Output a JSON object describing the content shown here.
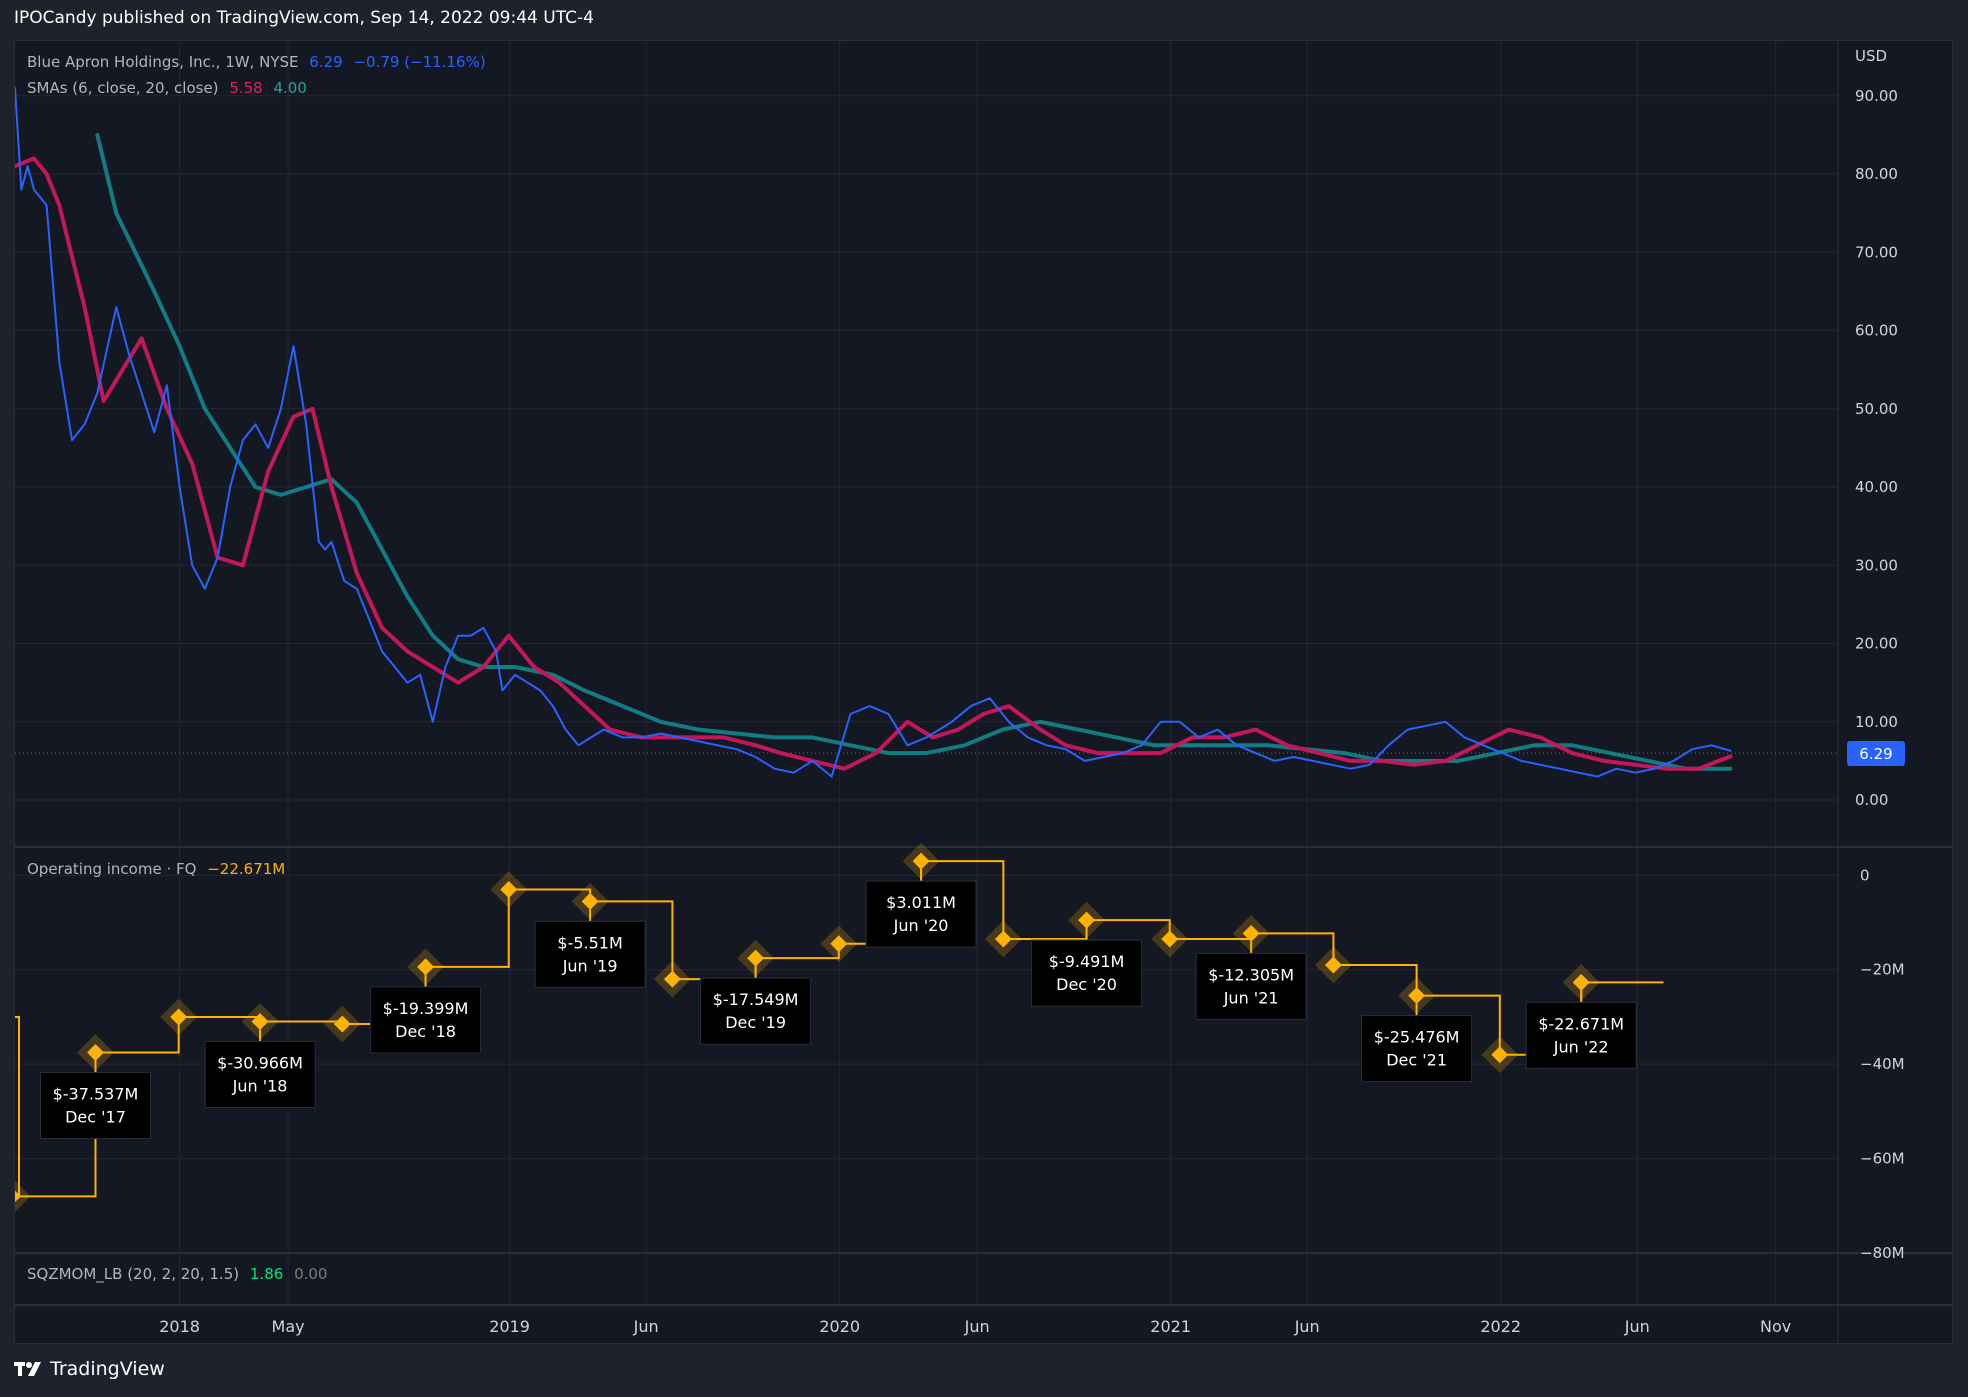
{
  "header": {
    "published": "IPOCandy published on TradingView.com, Sep 14, 2022 09:44 UTC-4"
  },
  "footer": {
    "brand": "TradingView"
  },
  "main_legend": {
    "symbol": "Blue Apron Holdings, Inc., 1W, NYSE",
    "last": "6.29",
    "change": "−0.79 (−11.16%)",
    "sma_label": "SMAs (6, close, 20, close)",
    "sma6": "5.58",
    "sma20": "4.00"
  },
  "oi_legend": {
    "label": "Operating income · FQ",
    "value": "−22.671M"
  },
  "sqz_legend": {
    "label": "SQZMOM_LB (20, 2, 20, 1.5)",
    "v1": "1.86",
    "v2": "0.00"
  },
  "colors": {
    "price": "#2962ff",
    "sma6": "#c2185b",
    "sma20": "#137c82",
    "oi": "#ffb300"
  },
  "chart_data": [
    {
      "type": "line",
      "currency_label": "USD",
      "y_ticks": [
        "90.00",
        "80.00",
        "70.00",
        "60.00",
        "50.00",
        "40.00",
        "30.00",
        "20.00",
        "10.00",
        "0.00"
      ],
      "ylim": [
        -6,
        97
      ],
      "last_price_label": "6.29",
      "x_ticks": [
        "2018",
        "May",
        "2019",
        "Jun",
        "2020",
        "Jun",
        "2021",
        "Jun",
        "2022",
        "Jun",
        "Nov"
      ],
      "x_tick_dates": [
        "2018-01-01",
        "2018-05-01",
        "2019-01-01",
        "2019-06-01",
        "2020-01-01",
        "2020-06-01",
        "2021-01-01",
        "2021-06-01",
        "2022-01-01",
        "2022-06-01",
        "2022-11-01"
      ],
      "xlim": [
        "2017-07-03",
        "2023-01-09"
      ],
      "series": [
        {
          "name": "",
          "x": [
            "2017-07-03",
            "2017-07-10",
            "2017-07-17",
            "2017-07-24",
            "2017-08-07",
            "2017-08-21",
            "2017-09-04",
            "2017-09-18",
            "2017-10-02",
            "2017-10-23",
            "2017-11-06",
            "2017-11-20",
            "2017-12-04",
            "2017-12-18",
            "2018-01-01",
            "2018-01-15",
            "2018-01-29",
            "2018-02-12",
            "2018-02-26",
            "2018-03-12",
            "2018-03-26",
            "2018-04-09",
            "2018-04-23",
            "2018-05-07",
            "2018-05-21",
            "2018-06-04",
            "2018-06-11",
            "2018-06-18",
            "2018-07-02",
            "2018-07-16",
            "2018-07-30",
            "2018-08-13",
            "2018-08-27",
            "2018-09-10",
            "2018-09-24",
            "2018-10-08",
            "2018-10-22",
            "2018-11-05",
            "2018-11-19",
            "2018-12-03",
            "2018-12-17",
            "2018-12-24",
            "2019-01-07",
            "2019-01-21",
            "2019-02-04",
            "2019-02-18",
            "2019-03-04",
            "2019-03-18",
            "2019-04-01",
            "2019-04-15",
            "2019-05-06",
            "2019-05-27",
            "2019-06-17",
            "2019-07-08",
            "2019-07-29",
            "2019-08-19",
            "2019-09-09",
            "2019-09-30",
            "2019-10-21",
            "2019-11-11",
            "2019-12-02",
            "2019-12-23",
            "2020-01-13",
            "2020-02-03",
            "2020-02-24",
            "2020-03-16",
            "2020-04-06",
            "2020-04-20",
            "2020-05-04",
            "2020-05-25",
            "2020-06-15",
            "2020-07-06",
            "2020-07-27",
            "2020-08-17",
            "2020-09-07",
            "2020-09-28",
            "2020-10-19",
            "2020-11-09",
            "2020-11-30",
            "2020-12-21",
            "2021-01-11",
            "2021-02-01",
            "2021-02-22",
            "2021-03-15",
            "2021-04-05",
            "2021-04-26",
            "2021-05-17",
            "2021-06-07",
            "2021-06-28",
            "2021-07-19",
            "2021-08-09",
            "2021-08-30",
            "2021-09-20",
            "2021-10-11",
            "2021-11-01",
            "2021-11-22",
            "2021-12-13",
            "2022-01-03",
            "2022-01-24",
            "2022-02-14",
            "2022-03-07",
            "2022-03-28",
            "2022-04-18",
            "2022-05-09",
            "2022-05-30",
            "2022-06-20",
            "2022-07-11",
            "2022-08-01",
            "2022-08-22",
            "2022-09-12"
          ],
          "values": [
            91,
            78,
            81,
            78,
            76,
            56,
            46,
            48,
            52,
            63,
            57,
            52,
            47,
            53,
            40,
            30,
            27,
            31,
            40,
            46,
            48,
            45,
            50,
            58,
            48,
            33,
            32,
            33,
            28,
            27,
            23,
            19,
            17,
            15,
            16,
            10,
            17,
            21,
            21,
            22,
            19,
            14,
            16,
            15,
            14,
            12,
            9,
            7,
            8,
            9,
            8,
            8,
            8.5,
            8,
            7.5,
            7,
            6.5,
            5.5,
            4,
            3.5,
            5,
            3,
            11,
            12,
            11,
            7,
            8,
            9,
            10,
            12,
            13,
            10,
            8,
            7,
            6.5,
            5,
            5.5,
            6,
            7,
            10,
            10,
            8,
            9,
            7,
            6,
            5,
            5.5,
            5,
            4.5,
            4,
            4.5,
            7,
            9,
            9.5,
            10,
            8,
            7,
            6,
            5,
            4.5,
            4,
            3.5,
            3,
            4,
            3.5,
            4,
            5,
            6.5,
            7,
            6.29
          ]
        },
        {
          "name": "",
          "x": [
            "2017-07-03",
            "2017-07-24",
            "2017-08-07",
            "2017-08-21",
            "2017-09-18",
            "2017-10-09",
            "2017-10-30",
            "2017-11-20",
            "2017-12-18",
            "2018-01-15",
            "2018-02-12",
            "2018-03-12",
            "2018-04-09",
            "2018-05-07",
            "2018-05-28",
            "2018-06-18",
            "2018-07-16",
            "2018-08-13",
            "2018-09-10",
            "2018-10-08",
            "2018-11-05",
            "2018-12-03",
            "2018-12-31",
            "2019-01-28",
            "2019-02-25",
            "2019-03-25",
            "2019-04-22",
            "2019-05-27",
            "2019-06-24",
            "2019-07-29",
            "2019-08-26",
            "2019-09-30",
            "2019-10-28",
            "2019-12-02",
            "2020-01-06",
            "2020-02-10",
            "2020-03-16",
            "2020-04-13",
            "2020-05-11",
            "2020-06-08",
            "2020-07-06",
            "2020-08-10",
            "2020-09-07",
            "2020-10-12",
            "2020-11-16",
            "2020-12-21",
            "2021-01-25",
            "2021-03-01",
            "2021-04-05",
            "2021-05-10",
            "2021-06-14",
            "2021-07-19",
            "2021-08-23",
            "2021-09-27",
            "2021-11-01",
            "2021-12-06",
            "2022-01-10",
            "2022-02-14",
            "2022-03-21",
            "2022-04-25",
            "2022-05-30",
            "2022-07-04",
            "2022-08-08",
            "2022-09-12"
          ],
          "values": [
            81,
            82,
            80,
            76,
            63,
            51,
            55,
            59,
            50,
            43,
            31,
            30,
            42,
            49,
            50,
            40,
            29,
            22,
            19,
            17,
            15,
            17,
            21,
            17,
            15,
            12,
            9,
            8,
            8,
            8,
            8,
            7,
            6,
            5,
            4,
            6,
            10,
            8,
            9,
            11,
            12,
            9,
            7,
            6,
            6,
            6,
            8,
            8,
            9,
            7,
            6,
            5,
            5,
            4.5,
            5,
            7,
            9,
            8,
            6,
            5,
            4.5,
            4,
            4,
            5.58
          ]
        },
        {
          "name": "",
          "x": [
            "2017-10-02",
            "2017-10-23",
            "2017-11-13",
            "2017-12-04",
            "2018-01-01",
            "2018-01-29",
            "2018-02-26",
            "2018-03-26",
            "2018-04-23",
            "2018-05-21",
            "2018-06-18",
            "2018-07-16",
            "2018-08-13",
            "2018-09-10",
            "2018-10-08",
            "2018-11-05",
            "2018-12-03",
            "2019-01-07",
            "2019-02-18",
            "2019-03-25",
            "2019-05-06",
            "2019-06-17",
            "2019-07-29",
            "2019-09-09",
            "2019-10-21",
            "2019-12-02",
            "2020-01-13",
            "2020-02-24",
            "2020-04-06",
            "2020-05-18",
            "2020-06-29",
            "2020-08-10",
            "2020-09-21",
            "2020-11-02",
            "2020-12-14",
            "2021-01-25",
            "2021-03-08",
            "2021-04-19",
            "2021-05-31",
            "2021-07-12",
            "2021-08-23",
            "2021-10-04",
            "2021-11-15",
            "2021-12-27",
            "2022-02-07",
            "2022-03-21",
            "2022-05-02",
            "2022-06-13",
            "2022-07-25",
            "2022-09-12"
          ],
          "values": [
            85,
            75,
            70,
            65,
            58,
            50,
            45,
            40,
            39,
            40,
            41,
            38,
            32,
            26,
            21,
            18,
            17,
            17,
            16,
            14,
            12,
            10,
            9,
            8.5,
            8,
            8,
            7,
            6,
            6,
            7,
            9,
            10,
            9,
            8,
            7,
            7,
            7,
            7,
            6.5,
            6,
            5,
            5,
            5,
            6,
            7,
            7,
            6,
            5,
            4,
            4.0
          ]
        }
      ]
    },
    {
      "type": "line",
      "ylabel": "",
      "y_ticks": [
        "0",
        "−20M",
        "−40M",
        "−60M",
        "−80M"
      ],
      "ylim": [
        -80,
        6
      ],
      "series": [
        {
          "name": "",
          "x": [
            "2017-06-30",
            "2017-09-30",
            "2017-12-31",
            "2018-03-31",
            "2018-06-30",
            "2018-09-30",
            "2018-12-31",
            "2019-03-31",
            "2019-06-30",
            "2019-09-30",
            "2019-12-31",
            "2020-03-31",
            "2020-06-30",
            "2020-09-30",
            "2020-12-31",
            "2021-03-31",
            "2021-06-30",
            "2021-09-30",
            "2021-12-31",
            "2022-03-31",
            "2022-06-30"
          ],
          "values": [
            -68,
            -37.537,
            -30,
            -30.966,
            -31.5,
            -19.399,
            -3,
            -5.51,
            -22,
            -17.549,
            -14.5,
            3.011,
            -13.5,
            -9.491,
            -13.5,
            -12.305,
            -19,
            -25.476,
            -38,
            -22.671,
            -22.671
          ]
        }
      ],
      "callouts": [
        {
          "amount": "$-37.537M",
          "period": "Dec '17"
        },
        {
          "amount": "$-30.966M",
          "period": "Jun '18"
        },
        {
          "amount": "$-19.399M",
          "period": "Dec '18"
        },
        {
          "amount": "$-5.51M",
          "period": "Jun '19"
        },
        {
          "amount": "$-17.549M",
          "period": "Dec '19"
        },
        {
          "amount": "$3.011M",
          "period": "Jun '20"
        },
        {
          "amount": "$-9.491M",
          "period": "Dec '20"
        },
        {
          "amount": "$-12.305M",
          "period": "Jun '21"
        },
        {
          "amount": "$-25.476M",
          "period": "Dec '21"
        },
        {
          "amount": "$-22.671M",
          "period": "Jun '22"
        }
      ]
    }
  ]
}
